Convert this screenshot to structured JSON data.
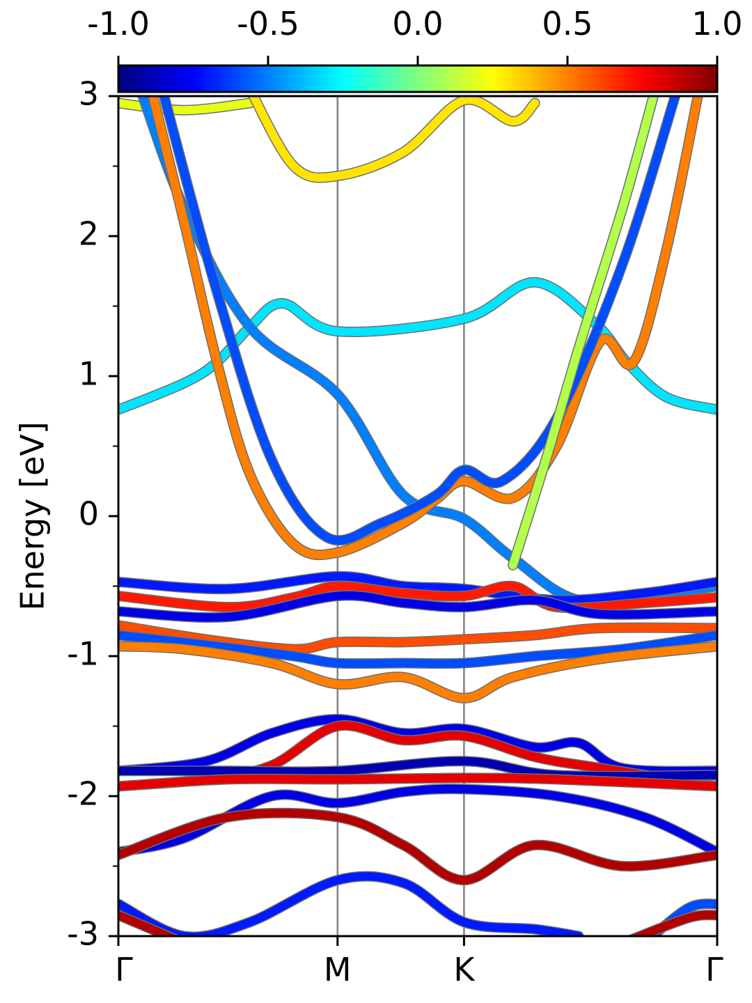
{
  "chart_data": {
    "type": "line",
    "title": "",
    "xlabel": "",
    "ylabel": "Energy [eV]",
    "ylim": [
      -3,
      3
    ],
    "yticks": [
      "3",
      "2",
      "1",
      "0",
      "-1",
      "-2",
      "-3"
    ],
    "yminor": [
      -2.5,
      -1.5,
      -0.5,
      0.5,
      1.5,
      2.5
    ],
    "kpoints": {
      "labels": [
        "Γ",
        "M",
        "K",
        "Γ"
      ],
      "positions": [
        0,
        1,
        1.577,
        2.732
      ]
    },
    "xlim": [
      0,
      2.732
    ],
    "colorbar": {
      "range": [
        -1.0,
        1.0
      ],
      "ticks": [
        "-1.0",
        "-0.5",
        "0.0",
        "0.5",
        "1.0"
      ],
      "tick_values": [
        -1.0,
        -0.5,
        0.0,
        0.5,
        1.0
      ],
      "colormap": "jet",
      "colors": [
        "#00007f",
        "#0000ff",
        "#007fff",
        "#00ffff",
        "#7fff7f",
        "#ffff00",
        "#ff7f00",
        "#ff0000",
        "#7f0000"
      ]
    },
    "series": [
      {
        "points": [
          [
            0,
            2.95
          ],
          [
            0.3,
            2.9
          ],
          [
            0.6,
            2.95
          ]
        ],
        "color_value": 0.2
      },
      {
        "points": [
          [
            0.6,
            3.05
          ],
          [
            0.8,
            2.5
          ],
          [
            1.0,
            2.43
          ],
          [
            1.3,
            2.6
          ],
          [
            1.577,
            2.97
          ],
          [
            1.8,
            2.82
          ],
          [
            1.9,
            2.95
          ]
        ],
        "color_value": 0.3
      },
      {
        "points": [
          [
            0,
            0.76
          ],
          [
            0.3,
            0.95
          ],
          [
            0.45,
            1.1
          ],
          [
            0.6,
            1.35
          ],
          [
            0.75,
            1.52
          ],
          [
            1.0,
            1.32
          ],
          [
            1.577,
            1.41
          ],
          [
            1.9,
            1.67
          ],
          [
            2.18,
            1.37
          ],
          [
            2.32,
            1.1
          ],
          [
            2.5,
            0.85
          ],
          [
            2.732,
            0.76
          ]
        ],
        "color_value": -0.3
      },
      {
        "points": [
          [
            0.1,
            3.05
          ],
          [
            0.3,
            2.2
          ],
          [
            0.6,
            1.35
          ],
          [
            1.0,
            0.87
          ],
          [
            1.3,
            0.15
          ],
          [
            1.577,
            -0.02
          ],
          [
            1.8,
            -0.3
          ],
          [
            2.1,
            -0.6
          ],
          [
            2.5,
            -0.55
          ],
          [
            2.732,
            -0.5
          ]
        ],
        "color_value": -0.5
      },
      {
        "points": [
          [
            0.15,
            3.05
          ],
          [
            0.3,
            2.1
          ],
          [
            0.45,
            1.1
          ],
          [
            0.6,
            0.3
          ],
          [
            0.8,
            -0.2
          ],
          [
            1.0,
            -0.26
          ],
          [
            1.3,
            -0.05
          ],
          [
            1.45,
            0.12
          ],
          [
            1.577,
            0.25
          ],
          [
            1.8,
            0.13
          ],
          [
            2.0,
            0.5
          ],
          [
            2.2,
            1.25
          ],
          [
            2.35,
            1.1
          ],
          [
            2.5,
            1.9
          ],
          [
            2.65,
            3.05
          ]
        ],
        "color_value": 0.5
      },
      {
        "points": [
          [
            0.2,
            3.05
          ],
          [
            0.45,
            1.6
          ],
          [
            0.7,
            0.4
          ],
          [
            0.95,
            -0.15
          ],
          [
            1.2,
            -0.05
          ],
          [
            1.45,
            0.15
          ],
          [
            1.577,
            0.33
          ],
          [
            1.75,
            0.25
          ],
          [
            2.0,
            0.7
          ],
          [
            2.3,
            1.8
          ],
          [
            2.55,
            3.05
          ]
        ],
        "color_value": -0.6
      },
      {
        "points": [
          [
            1.8,
            -0.35
          ],
          [
            1.95,
            0.4
          ],
          [
            2.1,
            1.2
          ],
          [
            2.3,
            2.2
          ],
          [
            2.45,
            3.05
          ]
        ],
        "color_value": 0.1
      },
      {
        "points": [
          [
            0,
            -0.47
          ],
          [
            0.5,
            -0.52
          ],
          [
            1.0,
            -0.43
          ],
          [
            1.3,
            -0.5
          ],
          [
            1.577,
            -0.52
          ],
          [
            2.0,
            -0.6
          ],
          [
            2.4,
            -0.55
          ],
          [
            2.732,
            -0.47
          ]
        ],
        "color_value": -0.7
      },
      {
        "points": [
          [
            0,
            -0.57
          ],
          [
            0.5,
            -0.65
          ],
          [
            0.8,
            -0.58
          ],
          [
            1.0,
            -0.5
          ],
          [
            1.3,
            -0.55
          ],
          [
            1.577,
            -0.57
          ],
          [
            1.8,
            -0.5
          ],
          [
            2.0,
            -0.65
          ],
          [
            2.4,
            -0.62
          ],
          [
            2.732,
            -0.58
          ]
        ],
        "color_value": 0.7
      },
      {
        "points": [
          [
            0,
            -0.68
          ],
          [
            0.5,
            -0.72
          ],
          [
            1.0,
            -0.57
          ],
          [
            1.3,
            -0.62
          ],
          [
            1.577,
            -0.65
          ],
          [
            1.9,
            -0.6
          ],
          [
            2.2,
            -0.7
          ],
          [
            2.732,
            -0.68
          ]
        ],
        "color_value": -0.8
      },
      {
        "points": [
          [
            0,
            -0.78
          ],
          [
            0.4,
            -0.88
          ],
          [
            0.8,
            -0.95
          ],
          [
            1.0,
            -0.9
          ],
          [
            1.3,
            -0.9
          ],
          [
            1.577,
            -0.88
          ],
          [
            1.9,
            -0.85
          ],
          [
            2.2,
            -0.8
          ],
          [
            2.732,
            -0.8
          ]
        ],
        "color_value": 0.6
      },
      {
        "points": [
          [
            0,
            -0.85
          ],
          [
            0.4,
            -0.92
          ],
          [
            0.8,
            -1.0
          ],
          [
            1.0,
            -1.05
          ],
          [
            1.3,
            -1.05
          ],
          [
            1.577,
            -1.05
          ],
          [
            1.9,
            -1.0
          ],
          [
            2.3,
            -0.95
          ],
          [
            2.732,
            -0.85
          ]
        ],
        "color_value": -0.6
      },
      {
        "points": [
          [
            0,
            -0.93
          ],
          [
            0.3,
            -0.95
          ],
          [
            0.7,
            -1.05
          ],
          [
            1.0,
            -1.2
          ],
          [
            1.3,
            -1.15
          ],
          [
            1.577,
            -1.3
          ],
          [
            1.8,
            -1.15
          ],
          [
            2.2,
            -1.02
          ],
          [
            2.732,
            -0.93
          ]
        ],
        "color_value": 0.5
      },
      {
        "points": [
          [
            0,
            -1.82
          ],
          [
            0.4,
            -1.75
          ],
          [
            0.7,
            -1.55
          ],
          [
            1.0,
            -1.45
          ],
          [
            1.3,
            -1.55
          ],
          [
            1.577,
            -1.52
          ],
          [
            1.9,
            -1.65
          ],
          [
            2.1,
            -1.62
          ],
          [
            2.3,
            -1.8
          ],
          [
            2.732,
            -1.82
          ]
        ],
        "color_value": -0.8
      },
      {
        "points": [
          [
            0,
            -1.93
          ],
          [
            0.4,
            -1.88
          ],
          [
            0.7,
            -1.78
          ],
          [
            1.0,
            -1.5
          ],
          [
            1.3,
            -1.6
          ],
          [
            1.577,
            -1.57
          ],
          [
            1.9,
            -1.72
          ],
          [
            2.2,
            -1.8
          ],
          [
            2.732,
            -1.93
          ]
        ],
        "color_value": 0.8
      },
      {
        "points": [
          [
            0,
            -1.82
          ],
          [
            0.5,
            -1.82
          ],
          [
            1.0,
            -1.82
          ],
          [
            1.577,
            -1.75
          ],
          [
            2.0,
            -1.85
          ],
          [
            2.732,
            -1.85
          ]
        ],
        "color_value": -0.9
      },
      {
        "points": [
          [
            0,
            -1.93
          ],
          [
            0.5,
            -1.88
          ],
          [
            1.0,
            -1.88
          ],
          [
            1.577,
            -1.87
          ],
          [
            2.0,
            -1.88
          ],
          [
            2.732,
            -1.93
          ]
        ],
        "color_value": 0.8
      },
      {
        "points": [
          [
            0,
            -2.4
          ],
          [
            0.3,
            -2.3
          ],
          [
            0.7,
            -2.0
          ],
          [
            1.0,
            -2.05
          ],
          [
            1.3,
            -1.97
          ],
          [
            1.577,
            -1.95
          ],
          [
            2.0,
            -2.0
          ],
          [
            2.4,
            -2.15
          ],
          [
            2.732,
            -2.4
          ]
        ],
        "color_value": -0.8
      },
      {
        "points": [
          [
            0,
            -2.42
          ],
          [
            0.5,
            -2.15
          ],
          [
            1.0,
            -2.15
          ],
          [
            1.3,
            -2.35
          ],
          [
            1.577,
            -2.6
          ],
          [
            1.9,
            -2.35
          ],
          [
            2.3,
            -2.5
          ],
          [
            2.732,
            -2.42
          ]
        ],
        "color_value": 0.9
      },
      {
        "points": [
          [
            0,
            -2.77
          ],
          [
            0.3,
            -3.0
          ],
          [
            0.6,
            -2.9
          ],
          [
            1.0,
            -2.6
          ],
          [
            1.3,
            -2.62
          ],
          [
            1.577,
            -2.9
          ],
          [
            1.9,
            -2.95
          ],
          [
            2.1,
            -3.0
          ]
        ],
        "color_value": -0.7
      },
      {
        "points": [
          [
            0,
            -2.85
          ],
          [
            0.3,
            -3.05
          ]
        ],
        "color_value": 0.9
      },
      {
        "points": [
          [
            2.4,
            -3.05
          ],
          [
            2.6,
            -2.8
          ],
          [
            2.732,
            -2.77
          ]
        ],
        "color_value": -0.6
      },
      {
        "points": [
          [
            2.3,
            -3.05
          ],
          [
            2.6,
            -2.87
          ],
          [
            2.732,
            -2.85
          ]
        ],
        "color_value": 0.9
      }
    ]
  }
}
